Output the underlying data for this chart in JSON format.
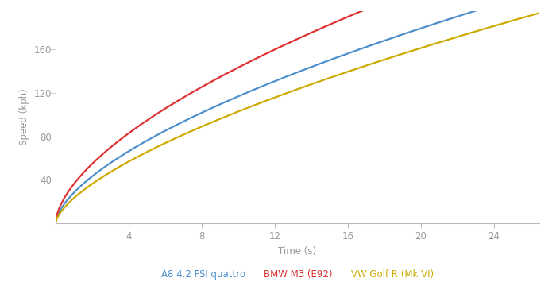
{
  "xlabel": "Time (s)",
  "ylabel": "Speed (kph)",
  "xlim": [
    0,
    26.5
  ],
  "ylim": [
    0,
    195
  ],
  "xticks": [
    4,
    8,
    12,
    16,
    20,
    24
  ],
  "yticks": [
    40,
    80,
    120,
    160
  ],
  "background_color": "#ffffff",
  "axis_color": "#bbbbbb",
  "tick_label_color": "#999999",
  "series": [
    {
      "label": "A8 4.2 FSI quattro",
      "color": "#4d8fcc",
      "a": 28.0,
      "b": 0.62
    },
    {
      "label": "BMW M3 (E92)",
      "color": "#dd3333",
      "a": 36.0,
      "b": 0.6
    },
    {
      "label": "VW Golf R (Mk VI)",
      "color": "#ccaa00",
      "a": 23.0,
      "b": 0.65
    }
  ],
  "legend_fontsize": 8.5,
  "axis_label_fontsize": 8.5,
  "tick_label_fontsize": 8.5,
  "linewidth": 1.6
}
